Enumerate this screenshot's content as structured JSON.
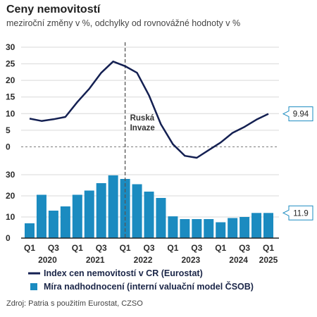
{
  "title": "Ceny nemovitostí",
  "subtitle": "meziroční změny v %, odchylky od rovnovážné hodnoty v %",
  "source": "Zdroj: Patria s použitím Eurostat, CZSO",
  "colors": {
    "line": "#142052",
    "bar": "#1b8bc0",
    "callout_border": "#1b8bc0",
    "axis": "#222222",
    "grid": "#d9d9d9"
  },
  "chart_data": [
    {
      "type": "line",
      "series": [
        {
          "name": "Index cen nemovitostí v CR (Eurostat)",
          "values": [
            8.5,
            7.8,
            8.3,
            9.0,
            13.5,
            17.5,
            22.3,
            25.7,
            24.3,
            22.3,
            15.5,
            6.8,
            0.8,
            -2.7,
            -3.3,
            -1.0,
            1.3,
            4.2,
            6.0,
            8.2,
            9.94
          ]
        }
      ],
      "yticks": [
        30,
        25,
        20,
        15,
        10,
        5,
        0
      ],
      "ylim": [
        -5,
        30
      ],
      "callout": "9.94",
      "annotation": [
        "Ruská",
        "Invaze"
      ]
    },
    {
      "type": "bar",
      "series": [
        {
          "name": "Míra nadhodnocení (interní valuační model ČSOB)",
          "values": [
            7.0,
            20.5,
            13.0,
            15.0,
            20.5,
            22.5,
            26.0,
            29.7,
            28.0,
            25.5,
            22.0,
            19.0,
            10.3,
            9.0,
            9.0,
            9.0,
            7.5,
            9.5,
            10.0,
            11.9,
            11.9
          ]
        }
      ],
      "yticks": [
        30,
        20,
        10,
        0
      ],
      "ylim": [
        0,
        32
      ],
      "callout": "11.9"
    }
  ],
  "quarter_labels": [
    {
      "index": 0,
      "label": "Q1"
    },
    {
      "index": 2,
      "label": "Q3"
    },
    {
      "index": 4,
      "label": "Q1"
    },
    {
      "index": 6,
      "label": "Q3"
    },
    {
      "index": 8,
      "label": "Q1"
    },
    {
      "index": 10,
      "label": "Q3"
    },
    {
      "index": 12,
      "label": "Q1"
    },
    {
      "index": 14,
      "label": "Q3"
    },
    {
      "index": 16,
      "label": "Q1"
    },
    {
      "index": 18,
      "label": "Q3"
    },
    {
      "index": 20,
      "label": "Q1"
    }
  ],
  "year_labels": [
    {
      "index": 1.5,
      "label": "2020"
    },
    {
      "index": 5.5,
      "label": "2021"
    },
    {
      "index": 9.5,
      "label": "2022"
    },
    {
      "index": 13.5,
      "label": "2023"
    },
    {
      "index": 17.5,
      "label": "2024"
    },
    {
      "index": 20,
      "label": "2025"
    }
  ],
  "invasion_index": 8
}
